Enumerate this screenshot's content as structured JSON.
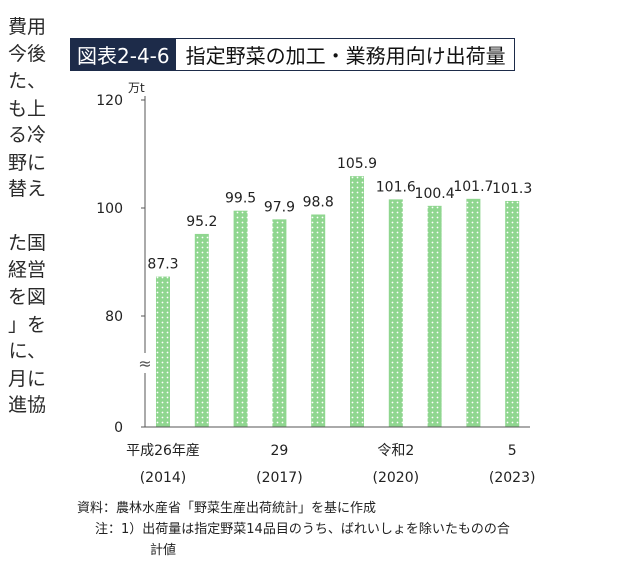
{
  "left_text": [
    "費用",
    "今後",
    "た、",
    "も上",
    "る冷",
    "野に",
    "替え",
    "た国",
    "経営",
    "を図",
    "」を",
    "に、",
    "月に",
    "進協"
  ],
  "figure": {
    "code": "図表2-4-6",
    "title": "指定野菜の加工・業務用向け出荷量",
    "source": "資料：農林水産省「野菜生産出荷統計」を基に作成",
    "note_line1": "注：1）出荷量は指定野菜14品目のうち、ばれいしょを除いたものの合",
    "note_line2": "計値"
  },
  "chart_data": {
    "type": "bar",
    "unit": "万t",
    "values": [
      87.3,
      95.2,
      99.5,
      97.9,
      98.8,
      105.9,
      101.6,
      100.4,
      101.7,
      101.3
    ],
    "value_labels": [
      "87.3",
      "95.2",
      "99.5",
      "97.9",
      "98.8",
      "105.9",
      "101.6",
      "100.4",
      "101.7",
      "101.3"
    ],
    "x_tick_labels": [
      {
        "bar_index": 0,
        "line1": "平成26年産",
        "line2": "(2014)"
      },
      {
        "bar_index": 3,
        "line1": "29",
        "line2": "(2017)"
      },
      {
        "bar_index": 6,
        "line1": "令和2",
        "line2": "(2020)"
      },
      {
        "bar_index": 9,
        "line1": "5",
        "line2": "(2023)"
      }
    ],
    "y_ticks": [
      "120",
      "100",
      "80",
      "0"
    ],
    "axis_break": "≈",
    "bar_color": "#8fd68f",
    "bar_dot_color": "#ffffff",
    "ylim": [
      0,
      120
    ]
  }
}
